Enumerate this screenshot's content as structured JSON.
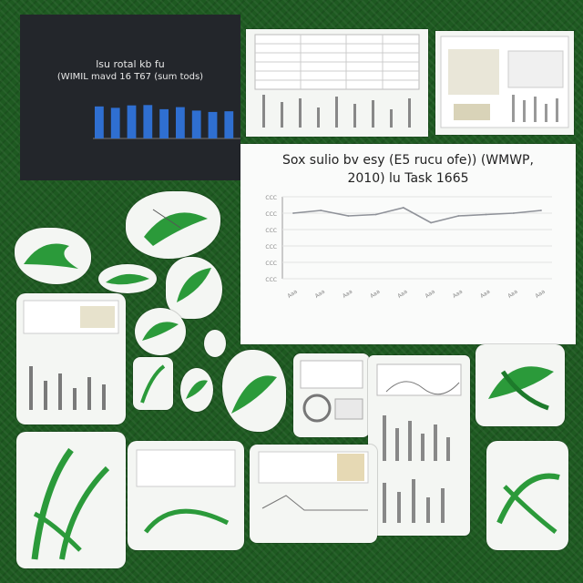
{
  "collage": {
    "colors": {
      "background": "#1e5a21",
      "card": "#f4f6f3",
      "dark_panel": "#23262b",
      "bar_blue": "#2f6fd1",
      "leaf_green": "#2b9a3a"
    }
  },
  "dark_chart": {
    "title_line1": "lsu rotal kb fu",
    "title_line2": "(WIMIL mavd 16 T67 (sum tods)",
    "caption": "",
    "bar_count": 10
  },
  "line_chart": {
    "title_line1": "Sox sulio bv esy (E5 rucu ofe)) (WMWP,",
    "title_line2": "2010) lu Task 1665",
    "y_ticks": [
      "CCC",
      "CCC",
      "CCC",
      "CCC",
      "CCC",
      "CCC"
    ],
    "x_ticks": [
      "Aaa",
      "Aaa",
      "Aaa",
      "Aaa",
      "Aaa",
      "Aaa",
      "Aaa",
      "Aaa",
      "Aaa",
      "Aaa"
    ]
  },
  "chart_data": {
    "type": "line",
    "x": [
      0,
      1,
      2,
      3,
      4,
      5,
      6,
      7,
      8,
      9
    ],
    "values": [
      48,
      50,
      46,
      47,
      52,
      41,
      46,
      47,
      48,
      50
    ],
    "ylim": [
      0,
      60
    ]
  }
}
